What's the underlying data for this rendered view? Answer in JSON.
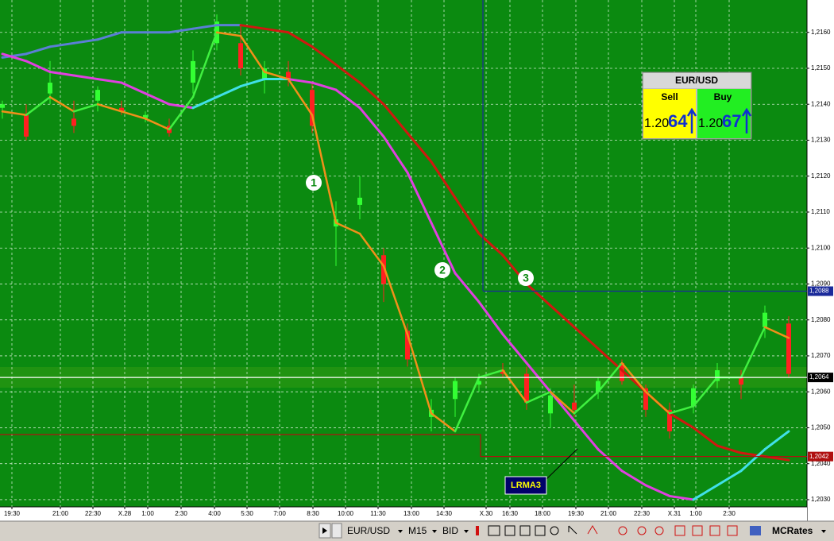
{
  "chart_data": {
    "type": "candlestick",
    "ylim": [
      1.2028,
      1.2169
    ],
    "yticks": [
      {
        "value": 1.216,
        "label": "1,2160"
      },
      {
        "value": 1.215,
        "label": "1,2150"
      },
      {
        "value": 1.214,
        "label": "1,2140"
      },
      {
        "value": 1.213,
        "label": "1,2130"
      },
      {
        "value": 1.212,
        "label": "1,2120"
      },
      {
        "value": 1.211,
        "label": "1,2110"
      },
      {
        "value": 1.21,
        "label": "1,2100"
      },
      {
        "value": 1.209,
        "label": "1,2090"
      },
      {
        "value": 1.208,
        "label": "1,2080"
      },
      {
        "value": 1.207,
        "label": "1,2070"
      },
      {
        "value": 1.206,
        "label": "1,2060"
      },
      {
        "value": 1.205,
        "label": "1,2050"
      },
      {
        "value": 1.204,
        "label": "1,2040"
      },
      {
        "value": 1.203,
        "label": "1,2030"
      }
    ],
    "xticks": [
      "19:30",
      "21:00",
      "22:30",
      "X.28",
      "1:00",
      "2:30",
      "4:00",
      "5:30",
      "7:00",
      "8:30",
      "10:00",
      "11:30",
      "13:00",
      "14:30",
      "X.30",
      "16:30",
      "18:00",
      "19:30",
      "21:00",
      "22:30",
      "X.31",
      "1:00",
      "2:30"
    ],
    "grid": true,
    "background": "#0b8a10",
    "candles": {
      "up_color": "#33ff33",
      "down_color": "#ff2020",
      "open": [
        1.2139,
        1.2137,
        1.2143,
        1.2136,
        1.2141,
        1.2139,
        1.2136,
        1.2134,
        1.2146,
        1.2157,
        1.2157,
        1.2147,
        1.2149,
        1.2144,
        1.2106,
        1.2112,
        1.2098,
        1.2077,
        1.2053,
        1.2058,
        1.2062,
        1.2066,
        1.2065,
        1.2054,
        1.2057,
        1.206,
        1.2068,
        1.2061,
        1.2055,
        1.2056,
        1.2063,
        1.2064,
        1.2078,
        1.2079
      ],
      "high": [
        1.2141,
        1.214,
        1.2152,
        1.2141,
        1.2145,
        1.2141,
        1.2138,
        1.2136,
        1.2155,
        1.2165,
        1.2162,
        1.2152,
        1.2152,
        1.2146,
        1.2113,
        1.212,
        1.21,
        1.2079,
        1.2058,
        1.2064,
        1.2065,
        1.2068,
        1.2067,
        1.2061,
        1.2062,
        1.2064,
        1.2069,
        1.2062,
        1.2057,
        1.2062,
        1.2068,
        1.2066,
        1.2084,
        1.2081
      ],
      "low": [
        1.2136,
        1.213,
        1.214,
        1.2132,
        1.2138,
        1.2137,
        1.2135,
        1.2131,
        1.2143,
        1.2155,
        1.2148,
        1.2143,
        1.2145,
        1.2132,
        1.2095,
        1.2108,
        1.2085,
        1.2067,
        1.2049,
        1.2053,
        1.206,
        1.2064,
        1.2055,
        1.205,
        1.2053,
        1.2058,
        1.2062,
        1.2053,
        1.2047,
        1.2054,
        1.2061,
        1.2058,
        1.2075,
        1.2064
      ],
      "close": [
        1.214,
        1.2131,
        1.2146,
        1.2134,
        1.2144,
        1.2138,
        1.2137,
        1.2132,
        1.2152,
        1.2163,
        1.215,
        1.215,
        1.2147,
        1.2134,
        1.2108,
        1.2114,
        1.209,
        1.2069,
        1.2055,
        1.2063,
        1.2063,
        1.2065,
        1.2057,
        1.2059,
        1.2055,
        1.2063,
        1.2063,
        1.2055,
        1.2049,
        1.2061,
        1.2066,
        1.2062,
        1.2082,
        1.2065
      ]
    },
    "lines": [
      {
        "up_color": "#5b7fd6",
        "down_color": "#d01810",
        "width": 3,
        "values": [
          1.2153,
          1.2154,
          1.2156,
          1.2157,
          1.2158,
          1.216,
          1.216,
          1.216,
          1.2161,
          1.2162,
          1.2162,
          1.2161,
          1.216,
          1.2156,
          1.2151,
          1.2146,
          1.214,
          1.2132,
          1.2124,
          1.2114,
          1.2104,
          1.2098,
          1.209,
          1.2084,
          1.2078,
          1.2072,
          1.2066,
          1.206,
          1.2054,
          1.205,
          1.2045,
          1.2043,
          1.2042,
          1.2041
        ]
      },
      {
        "up_color": "#40e0e8",
        "down_color": "#e040e0",
        "width": 3,
        "values": [
          1.2154,
          1.2152,
          1.2149,
          1.2148,
          1.2147,
          1.2146,
          1.2143,
          1.214,
          1.2139,
          1.2142,
          1.2145,
          1.2147,
          1.2147,
          1.2146,
          1.2144,
          1.2139,
          1.2131,
          1.2121,
          1.2107,
          1.2093,
          1.2085,
          1.2076,
          1.2068,
          1.206,
          1.2052,
          1.2044,
          1.2038,
          1.2034,
          1.2031,
          1.203,
          1.2034,
          1.2038,
          1.2044,
          1.2049
        ]
      },
      {
        "up_color": "#40f040",
        "down_color": "#f0901a",
        "width": 2.5,
        "values": [
          1.2138,
          1.2137,
          1.2142,
          1.2138,
          1.214,
          1.2138,
          1.2136,
          1.2133,
          1.2142,
          1.216,
          1.2159,
          1.2149,
          1.2147,
          1.2137,
          1.2107,
          1.2104,
          1.2095,
          1.2076,
          1.2054,
          1.2049,
          1.2064,
          1.2066,
          1.2057,
          1.206,
          1.2054,
          1.206,
          1.2068,
          1.206,
          1.2054,
          1.2056,
          1.2064,
          1.2064,
          1.2078,
          1.2075
        ]
      }
    ],
    "levels": [
      {
        "value": 1.2088,
        "label": "1,2088",
        "color": "#1a2a9a"
      },
      {
        "value": 1.2064,
        "label": "1,2064",
        "color": "#000000"
      },
      {
        "value": 1.2042,
        "label": "1,2042",
        "color": "#b01010"
      }
    ],
    "markers": [
      "1",
      "2",
      "3"
    ],
    "callout": "LRMA3"
  },
  "widget": {
    "symbol": "EUR/USD",
    "sell": {
      "label": "Sell",
      "big": "1.20",
      "pips": "64"
    },
    "buy": {
      "label": "Buy",
      "big": "1.20",
      "pips": "67"
    }
  },
  "toolbar": {
    "symbol": "EUR/USD",
    "period": "M15",
    "price": "BID",
    "feed": "MCRates"
  }
}
